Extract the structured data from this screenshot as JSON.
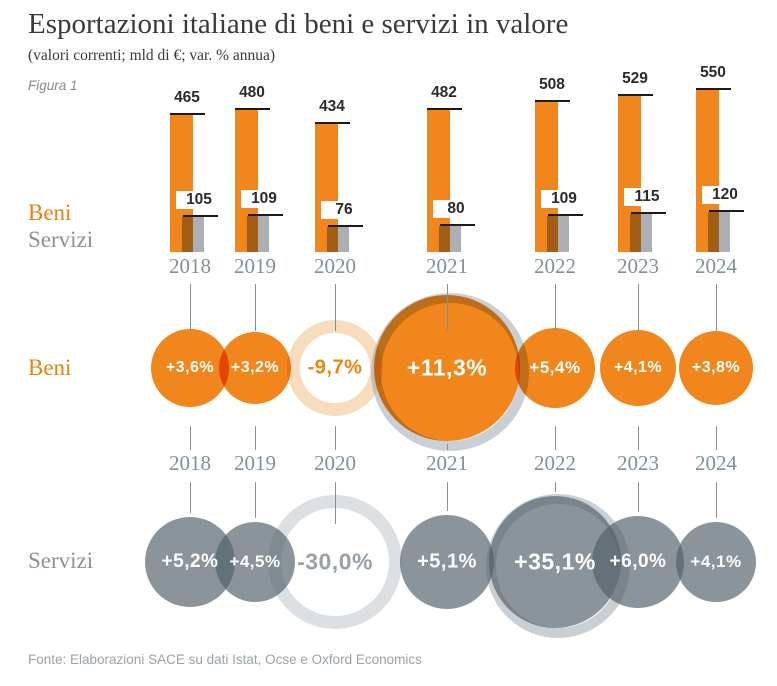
{
  "header": {
    "title": "Esportazioni italiane di beni e servizi in valore",
    "subtitle": "(valori correnti; mld di €; var. % annua)",
    "figure_label": "Figura 1"
  },
  "legend": {
    "beni": "Beni",
    "servizi": "Servizi"
  },
  "rows": {
    "beni_label": "Beni",
    "servizi_label": "Servizi"
  },
  "footer": {
    "source": "Fonte: Elaborazioni SACE su dati Istat, Ocse e Oxford Economics"
  },
  "chart_data": {
    "type": "composite",
    "title": "Esportazioni italiane di beni e servizi in valore",
    "subtitle": "(valori correnti; mld di €; var. % annua)",
    "unit": "mld di €",
    "categories": [
      "2018",
      "2019",
      "2020",
      "2021",
      "2022",
      "2023",
      "2024"
    ],
    "bar_series": [
      {
        "name": "Beni",
        "values": [
          465,
          480,
          434,
          482,
          508,
          529,
          550
        ]
      },
      {
        "name": "Servizi",
        "values": [
          105,
          109,
          76,
          80,
          109,
          115,
          120
        ]
      }
    ],
    "growth_series": [
      {
        "name": "Beni",
        "values_pct": [
          3.6,
          3.2,
          -9.7,
          11.3,
          5.4,
          4.1,
          3.8
        ],
        "labels": [
          "+3,6%",
          "+3,2%",
          "-9,7%",
          "+11,3%",
          "+5,4%",
          "+4,1%",
          "+3,8%"
        ]
      },
      {
        "name": "Servizi",
        "values_pct": [
          5.2,
          4.5,
          -30.0,
          5.1,
          35.1,
          6.0,
          4.1
        ],
        "labels": [
          "+5,2%",
          "+4,5%",
          "-30,0%",
          "+5,1%",
          "+35,1%",
          "+6,0%",
          "+4,1%"
        ]
      }
    ],
    "legend_position": "left",
    "grid": false,
    "negative_style": "hollow-ring",
    "colors": {
      "beni": "#f0861c",
      "servizi_bar": "#acb0b4",
      "servizi_bubble": "#8b959c",
      "beni_negative_ring": "#f7ddbe",
      "servizi_negative_ring": "#dce0e2",
      "beni_negative_text": "#ed8511",
      "servizi_negative_text": "#9aa2a9",
      "year_text": "#7e9494",
      "bar_cap": "#1b1b1b",
      "value_text": "#2b2b2b"
    }
  }
}
